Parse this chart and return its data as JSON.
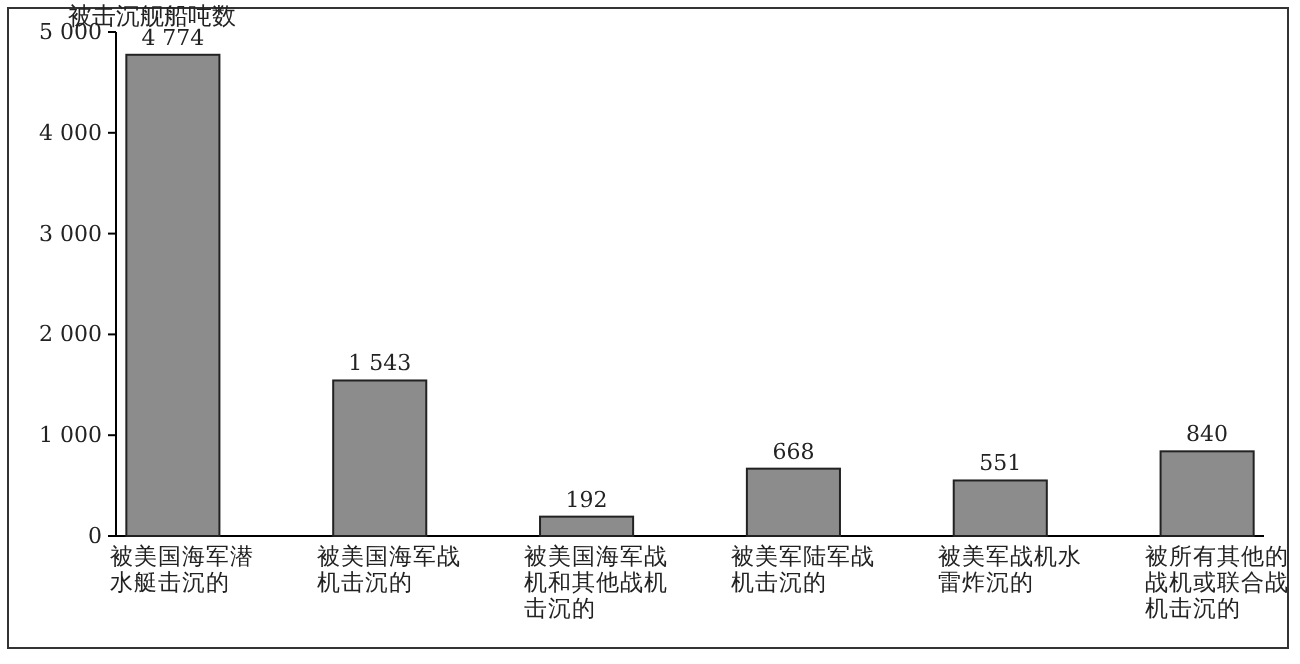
{
  "chart_data": {
    "type": "bar",
    "ylabel": "被击沉舰船吨数",
    "categories": [
      "被美国海军潜水艇击沉的",
      "被美国海军战机击沉的",
      "被美国海军战机和其他战机击沉的",
      "被美军陆军战机击沉的",
      "被美军战机水雷炸沉的",
      "被所有其他的战机或联合战机击沉的"
    ],
    "values": [
      4774,
      1543,
      192,
      668,
      551,
      840
    ],
    "color": "#8c8c8c",
    "ylim": [
      0,
      5000
    ],
    "yticks": [
      0,
      {
        "value": 1000,
        "label": "1 000"
      },
      {
        "value": 2000,
        "label": "2 000"
      },
      {
        "value": 3000,
        "label": "3 000"
      },
      {
        "value": 4000,
        "label": "4 000"
      },
      {
        "value": 5000,
        "label": "5 000"
      }
    ],
    "data_labels": true,
    "grid": false
  }
}
